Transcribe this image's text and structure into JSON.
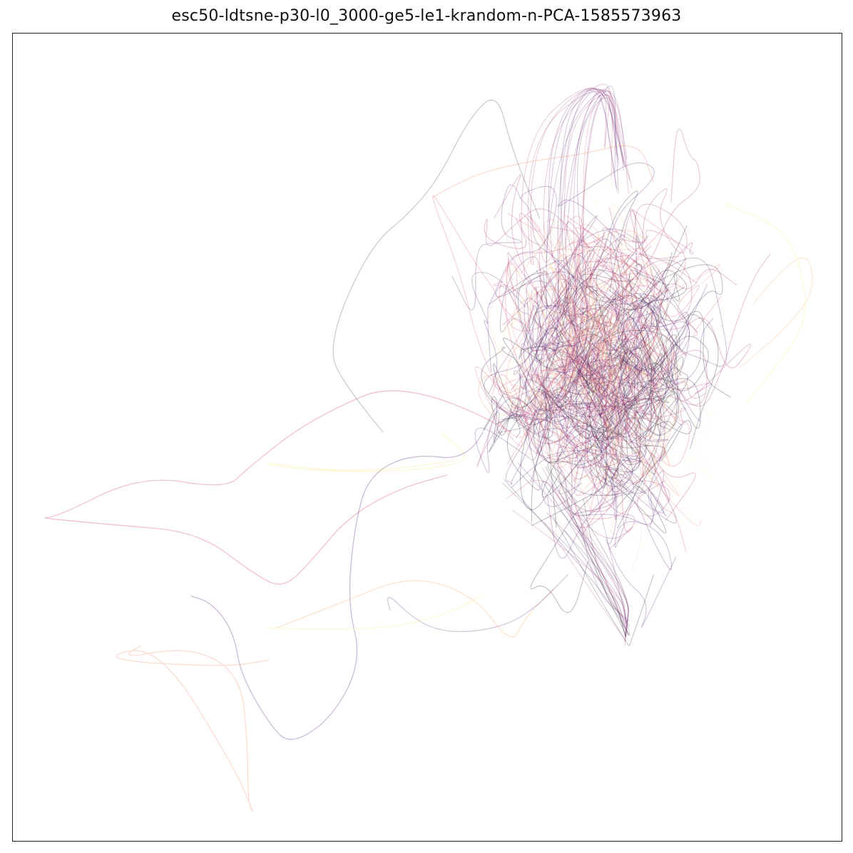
{
  "chart_data": {
    "type": "line",
    "title": "esc50-ldtsne-p30-l0_3000-ge5-le1-krandom-n-PCA-1585573963",
    "xlabel": "",
    "ylabel": "",
    "xticks": [],
    "yticks": [],
    "grid": false,
    "legend": "none",
    "colormap": "magma",
    "line_opacity": 0.25,
    "colors": {
      "dark": "#1a1030",
      "purple": "#5b1f73",
      "magenta": "#a3306f",
      "pink": "#d85070",
      "salmon": "#f08a6a",
      "peach": "#f8c090",
      "yellow": "#fbf3b0",
      "frame": "#222222"
    }
  }
}
